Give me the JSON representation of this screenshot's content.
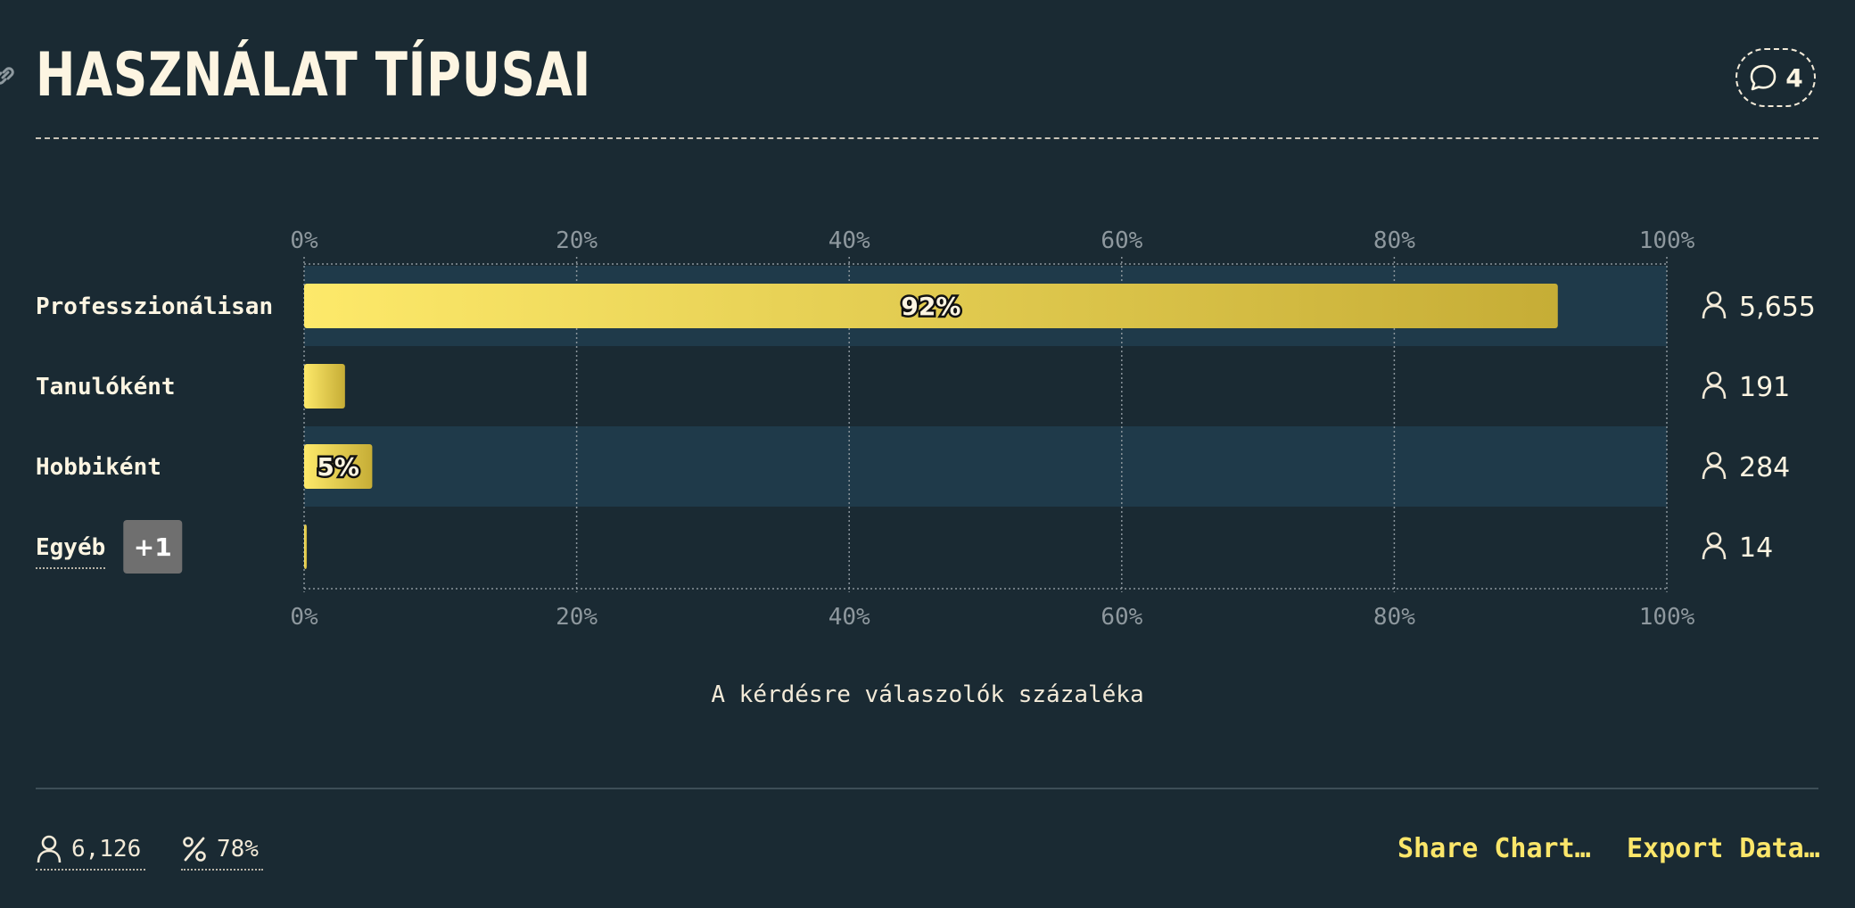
{
  "title": "HASZNÁLAT TÍPUSAI",
  "comments": {
    "count": "4"
  },
  "chart_data": {
    "type": "bar",
    "orientation": "horizontal",
    "categories": [
      "Professzionálisan",
      "Tanulóként",
      "Hobbiként",
      "Egyéb"
    ],
    "values": [
      92,
      3,
      5,
      0.2
    ],
    "value_labels": [
      "92%",
      "",
      "5%",
      ""
    ],
    "respondents": [
      "5,655",
      "191",
      "284",
      "14"
    ],
    "extra_badge": "+1",
    "xticks": [
      "0%",
      "20%",
      "40%",
      "60%",
      "80%",
      "100%"
    ],
    "xlim": [
      0,
      100
    ],
    "xlabel": "A kérdésre válaszolók százaléka",
    "grid": true,
    "colors": {
      "bar_start": "#fde96a",
      "bar_end": "#c6ad36",
      "row_highlight": "#1f3a4a",
      "grid": "#8a949b"
    }
  },
  "footer": {
    "total_respondents": "6,126",
    "response_rate": "78%",
    "share_label": "Share Chart…",
    "export_label": "Export Data…"
  },
  "icons": [
    "link-icon",
    "comment-icon",
    "person-icon",
    "percent-icon"
  ]
}
